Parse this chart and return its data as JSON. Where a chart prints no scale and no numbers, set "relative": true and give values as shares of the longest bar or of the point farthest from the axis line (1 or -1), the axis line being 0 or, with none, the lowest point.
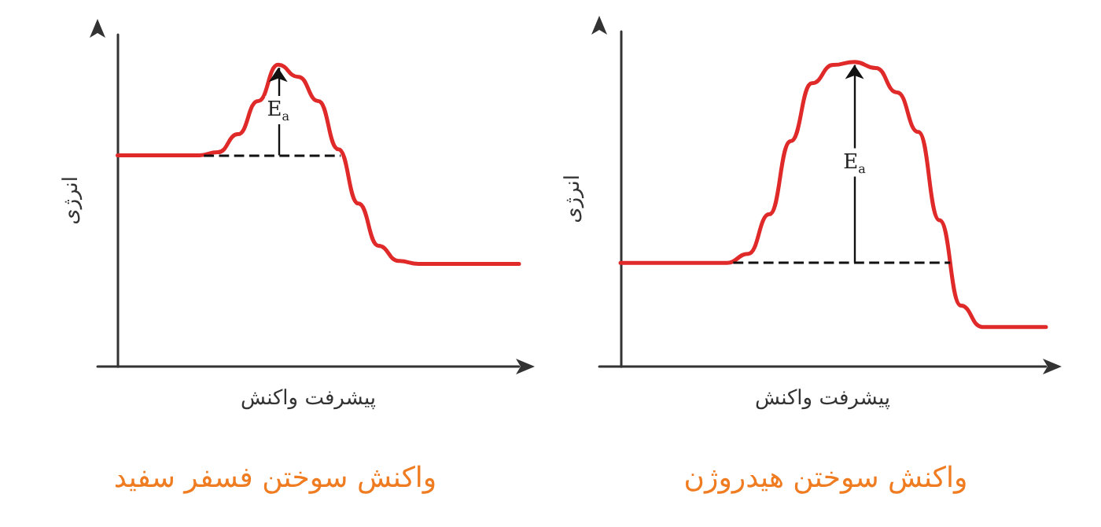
{
  "chart_data": [
    {
      "type": "line",
      "title": "واکنش سوختن فسفر سفید",
      "xlabel": "پیشرفت واکنش",
      "ylabel": "انرژی",
      "relative": true,
      "marker": "none",
      "ref_lines": [
        {
          "axis": "y",
          "value": 0.7,
          "line_style": "dashed",
          "color": "#111111"
        }
      ],
      "categories": [
        null,
        null,
        null,
        null,
        null,
        null,
        null,
        null,
        null,
        null,
        null,
        null,
        null,
        null,
        null,
        null,
        null,
        null,
        null,
        null,
        null
      ],
      "series": [
        {
          "color": "#e02a2a",
          "values": [
            0.7,
            0.7,
            0.7,
            0.7,
            0.7,
            0.71,
            0.77,
            0.88,
            1.0,
            0.96,
            0.88,
            0.72,
            0.54,
            0.4,
            0.35,
            0.34,
            0.34,
            0.34,
            0.34,
            0.34,
            0.34
          ]
        }
      ],
      "annotations": [
        {
          "text": "E$_{a}$",
          "y": 0.85
        }
      ]
    },
    {
      "type": "line",
      "title": "واکنش سوختن هیدروژن",
      "xlabel": "پیشرفت واکنش",
      "ylabel": "انرژی",
      "relative": true,
      "marker": "none",
      "ref_lines": [
        {
          "axis": "y",
          "value": 0.34,
          "line_style": "dashed",
          "color": "#111111"
        }
      ],
      "categories": [
        null,
        null,
        null,
        null,
        null,
        null,
        null,
        null,
        null,
        null,
        null,
        null,
        null,
        null,
        null,
        null,
        null,
        null,
        null,
        null,
        null
      ],
      "series": [
        {
          "color": "#e02a2a",
          "values": [
            0.34,
            0.34,
            0.34,
            0.34,
            0.34,
            0.34,
            0.37,
            0.5,
            0.74,
            0.93,
            0.99,
            1.0,
            0.98,
            0.9,
            0.77,
            0.48,
            0.2,
            0.13,
            0.13,
            0.13,
            0.13
          ]
        }
      ],
      "annotations": [
        {
          "text": "E$_{a}$",
          "y": 0.67
        }
      ]
    }
  ]
}
